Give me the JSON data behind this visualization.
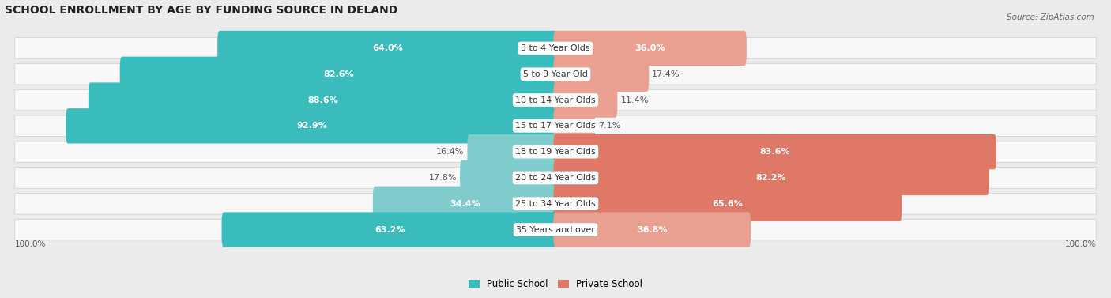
{
  "title": "SCHOOL ENROLLMENT BY AGE BY FUNDING SOURCE IN DELAND",
  "source": "Source: ZipAtlas.com",
  "categories": [
    "3 to 4 Year Olds",
    "5 to 9 Year Old",
    "10 to 14 Year Olds",
    "15 to 17 Year Olds",
    "18 to 19 Year Olds",
    "20 to 24 Year Olds",
    "25 to 34 Year Olds",
    "35 Years and over"
  ],
  "public_values": [
    64.0,
    82.6,
    88.6,
    92.9,
    16.4,
    17.8,
    34.4,
    63.2
  ],
  "private_values": [
    36.0,
    17.4,
    11.4,
    7.1,
    83.6,
    82.2,
    65.6,
    36.8
  ],
  "public_color_dark": "#3BBCBC",
  "public_color_light": "#80CCCC",
  "private_color_dark": "#E07868",
  "private_color_light": "#EAA090",
  "bg_color": "#EBEBEB",
  "bar_bg_color": "#F8F8F8",
  "title_fontsize": 10,
  "label_fontsize": 8,
  "cat_fontsize": 8,
  "bar_height": 0.55,
  "legend_public": "Public School",
  "legend_private": "Private School"
}
